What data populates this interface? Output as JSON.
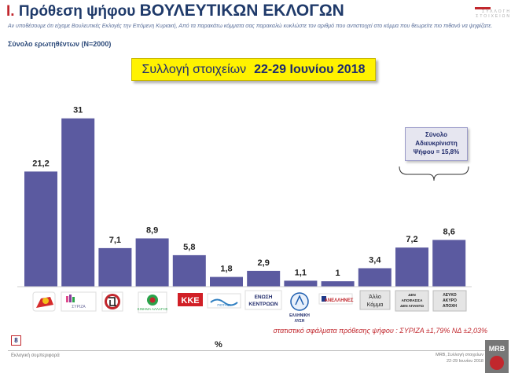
{
  "header": {
    "number": "Ι.",
    "title_lead": "Πρόθεση ψήφου",
    "title_caps": "ΒΟΥΛΕΥΤΙΚΩΝ ΕΚΛΟΓΩΝ",
    "question": "Αν υποθέσουμε ότι είχαμε Βουλευτικές Εκλογές την Επόμενη Κυριακή, Από τα παρακάτω κόμματα σας παρακαλώ κυκλώστε τον αριθμό που αντιστοιχεί στο κόμμα που θεωρείτε πιο πιθανό να ψηφίζατε.",
    "sample": "Σύνολο ερωτηθέντων (Ν=2000)",
    "brand": "ΣΥΛΛΟΓΗ ΣΤΟΙΧΕΙΩΝ"
  },
  "collection": {
    "label": "Συλλογή στοιχείων",
    "range": "22-29 Ιουνίου 2018"
  },
  "undecided": {
    "line1": "Σύνολο",
    "line2": "Αδιευκρίνιστη",
    "line3": "Ψήφου = 15,8%"
  },
  "chart_data": {
    "type": "bar",
    "categories": [
      "ΝΕΑ ΔΗΜΟΚΡΑΤΙΑ",
      "ΣΥΡΙΖΑ",
      "ΧΡΥΣΗ ΑΥΓΗ",
      "Κίνημα Αλλαγής",
      "ΚΚΕ",
      "Ποτάμι",
      "ΕΝΩΣΗ ΚΕΝΤΡΩΩΝ",
      "ΕΛΛΗΝΙΚΗ ΛΥΣΗ",
      "ΑΝΕΞΑΡΤΗΤΟΙ ΕΛΛΗΝΕΣ",
      "Άλλο Κόμμα",
      "ΔΕΝ ΑΠΟΦΑΣΙΣΑ / ΔΕΝ ΑΠΑΝΤΩ",
      "ΛΕΥΚΟ ΑΚΥΡΟ ΑΠΟΧΗ"
    ],
    "values": [
      21.2,
      31,
      7.1,
      8.9,
      5.8,
      1.8,
      2.9,
      1.1,
      1,
      3.4,
      7.2,
      8.6
    ],
    "value_labels": [
      "21,2",
      "31",
      "7,1",
      "8,9",
      "5,8",
      "1,8",
      "2,9",
      "1,1",
      "1",
      "3,4",
      "7,2",
      "8,6"
    ],
    "ylim": [
      0,
      35
    ],
    "bar_color": "#5b5aa0",
    "grid": false,
    "unit_label": "%"
  },
  "party_labels": {
    "enosi_kentroon": "ΕΝΩΣΗ ΚΕΝΤΡΩΩΝ",
    "elliniki_lysi": "ΕΛΛΗΝΙΚΗ ΛΥΣΗ",
    "kke": "ΚΚΕ",
    "potami": "ΠΟΤΑΜΙ",
    "anel": "ΑΝΕΛΛΗΝΕΣ",
    "allo_1": "Άλλο",
    "allo_2": "Κόμμα",
    "den_line1": "ΔΕΝ",
    "den_line2": "ΑΠΟΦΑΣΙΣΑ",
    "den_line3": "ΔΕΝ ΑΠΑΝΤΩ",
    "lefko_line1": "ΛΕΥΚΟ",
    "lefko_line2": "ΑΚΥΡΟ",
    "lefko_line3": "ΑΠΟΧΗ",
    "nd": "ΝΕΑ ΔΗΜΟΚΡΑΤΙΑ",
    "kinal": "ΚΙΝΗΜΑ ΑΛΛΑΓΗΣ",
    "xa": "ΧΑ"
  },
  "footer": {
    "statistical_error": "στατιστικό σφάλματα πρόθεσης ψήφου : ΣΥΡΙΖΑ ±1,79% ΝΔ ±2,03%",
    "page": "8",
    "left_text": "Εκλογική συμπεριφορά",
    "right_line1": "MRB, Συλλογή στοιχείων",
    "right_line2": "22-29 Ιουνίου 2018",
    "logo": "MRB"
  }
}
